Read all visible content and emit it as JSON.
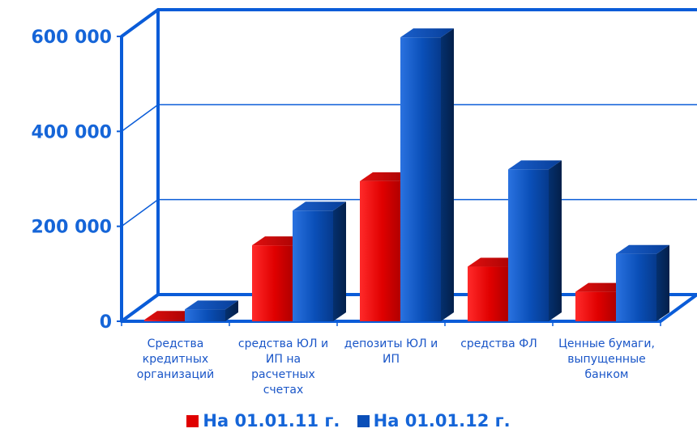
{
  "chart_data": {
    "type": "bar",
    "categories": [
      "Средства кредитных организаций",
      "средства ЮЛ и ИП на расчетных счетах",
      "депозиты ЮЛ и ИП",
      "средства ФЛ",
      "Ценные бумаги, выпущенные банком"
    ],
    "category_lines": [
      [
        "Средства",
        "кредитных",
        "организаций"
      ],
      [
        "средства ЮЛ и",
        "ИП на",
        "расчетных",
        "счетах"
      ],
      [
        "депозиты ЮЛ и",
        "ИП"
      ],
      [
        "средства ФЛ"
      ],
      [
        "Ценные бумаги,",
        "выпущенные",
        "банком"
      ]
    ],
    "series": [
      {
        "name": "На 01.01.11 г.",
        "color": "#e00000",
        "values": [
          3000,
          160000,
          295000,
          115000,
          62000
        ]
      },
      {
        "name": "На 01.01.12 г.",
        "color": "#0a4fb8",
        "values": [
          25000,
          233000,
          598000,
          320000,
          142000
        ]
      }
    ],
    "ylim": [
      0,
      600000
    ],
    "yticks": [
      0,
      200000,
      400000,
      600000
    ],
    "ytick_labels": [
      "0",
      "200 000",
      "400 000",
      "600 000"
    ],
    "grid": true,
    "legend_position": "bottom",
    "three_d": true,
    "title": "",
    "xlabel": "",
    "ylabel": ""
  }
}
